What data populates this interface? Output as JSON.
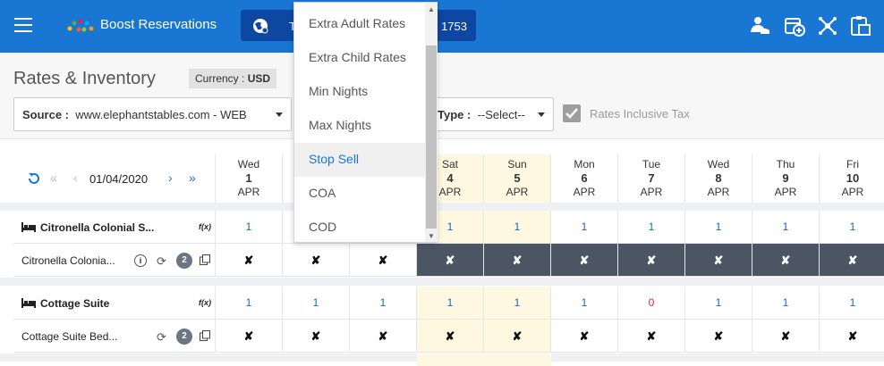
{
  "app": {
    "name": "Boost Reservations",
    "property_prefix": "T",
    "property_suffix": "1753"
  },
  "page": {
    "title": "Rates & Inventory",
    "currency_label": "Currency :",
    "currency_value": "USD"
  },
  "filters": {
    "source_label": "Source :",
    "source_value": "www.elephantstables.com - WEB",
    "type_label": "Type :",
    "type_value": "--Select--",
    "rates_inclusive_tax_label": "Rates Inclusive Tax",
    "rates_inclusive_tax_checked": true
  },
  "dropdown": {
    "items": [
      "Extra Adult Rates",
      "Extra Child Rates",
      "Min Nights",
      "Max Nights",
      "Stop Sell",
      "COA",
      "COD"
    ],
    "active": "Stop Sell"
  },
  "nav": {
    "date": "01/04/2020"
  },
  "days": [
    {
      "name": "Wed",
      "date": "1",
      "month": "APR",
      "weekend": false
    },
    {
      "name": "",
      "date": "",
      "month": "",
      "weekend": false
    },
    {
      "name": "",
      "date": "",
      "month": "",
      "weekend": false
    },
    {
      "name": "Sat",
      "date": "4",
      "month": "APR",
      "weekend": true
    },
    {
      "name": "Sun",
      "date": "5",
      "month": "APR",
      "weekend": true
    },
    {
      "name": "Mon",
      "date": "6",
      "month": "APR",
      "weekend": false
    },
    {
      "name": "Tue",
      "date": "7",
      "month": "APR",
      "weekend": false
    },
    {
      "name": "Wed",
      "date": "8",
      "month": "APR",
      "weekend": false
    },
    {
      "name": "Thu",
      "date": "9",
      "month": "APR",
      "weekend": false
    },
    {
      "name": "Fri",
      "date": "10",
      "month": "APR",
      "weekend": false
    }
  ],
  "rooms": [
    {
      "name": "Citronella Colonial S...",
      "fx": "f(x)",
      "inventory": [
        "1",
        "",
        "",
        "1",
        "1",
        "1",
        "1",
        "1",
        "1",
        "1"
      ],
      "rate_plan": "Citronella Colonia...",
      "rate_info": "i",
      "rate_badge": "2",
      "stop_sell": [
        "✘",
        "✘",
        "✘",
        "✘",
        "✘",
        "✘",
        "✘",
        "✘",
        "✘",
        "✘"
      ],
      "stop_sell_dark_from": 3
    },
    {
      "name": "Cottage Suite",
      "fx": "f(x)",
      "inventory": [
        "1",
        "1",
        "1",
        "1",
        "1",
        "1",
        "0",
        "1",
        "1",
        "1"
      ],
      "rate_plan": "Cottage Suite Bed...",
      "rate_info": "",
      "rate_badge": "2",
      "stop_sell": [
        "✘",
        "✘",
        "✘",
        "✘",
        "✘",
        "✘",
        "✘",
        "✘",
        "✘",
        "✘"
      ],
      "stop_sell_dark_from": 99
    }
  ],
  "colors": {
    "primary": "#1976d2",
    "header_dark": "#0d47a1",
    "weekend": "#fff8e1",
    "stopsell_dark": "#4c5563"
  },
  "icons": [
    "menu-icon",
    "logo-icon",
    "globe-icon",
    "team-icon",
    "calendar-add-icon",
    "network-icon",
    "clipboard-icon",
    "refresh-icon",
    "bed-icon",
    "info-icon",
    "sync-icon",
    "copy-icon"
  ]
}
